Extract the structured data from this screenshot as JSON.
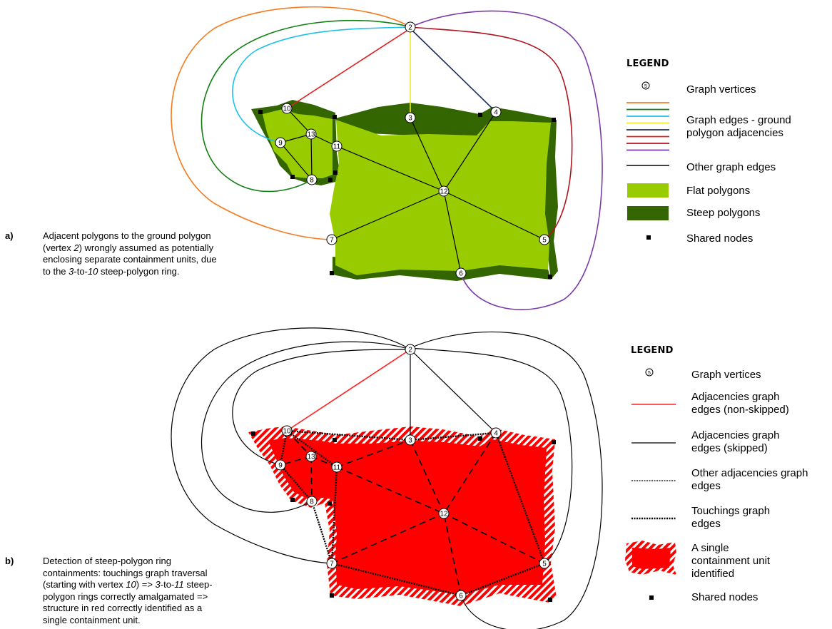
{
  "vertex_labels": [
    "2",
    "3",
    "4",
    "5",
    "6",
    "7",
    "8",
    "9",
    "10",
    "11",
    "12",
    "13"
  ],
  "panel_a": {
    "letter": "a)",
    "caption": [
      [
        {
          "t": "Adjacent polygons to  the ground polygon",
          "i": false
        }
      ],
      [
        {
          "t": "(vertex ",
          "i": false
        },
        {
          "t": "2",
          "i": true
        },
        {
          "t": ") wrongly assumed as potentially",
          "i": false
        }
      ],
      [
        {
          "t": "enclosing separate containment units, due",
          "i": false
        }
      ],
      [
        {
          "t": "to the ",
          "i": false
        },
        {
          "t": "3",
          "i": true
        },
        {
          "t": "-to-",
          "i": false
        },
        {
          "t": "10",
          "i": true
        },
        {
          "t": " steep-polygon ring.",
          "i": false
        }
      ]
    ],
    "legend_title": "LEGEND",
    "legend": {
      "vertex_symbol": "5",
      "vertices": "Graph vertices",
      "ground_edges": [
        "Graph edges - ground",
        "polygon adjacencies"
      ],
      "other_edges": "Other graph edges",
      "flat": "Flat polygons",
      "steep": "Steep polygons",
      "nodes": "Shared nodes"
    },
    "edge_colors": [
      "#f47b20",
      "#138013",
      "#1ec0ea",
      "#f2ea2a",
      "#1b2c5e",
      "#e02020",
      "#b0141e",
      "#7a3aa8"
    ],
    "flat_color": "#99cc00",
    "steep_color": "#336600"
  },
  "panel_b": {
    "letter": "b)",
    "caption": [
      [
        {
          "t": "Detection of steep-polygon ring",
          "i": false
        }
      ],
      [
        {
          "t": "containments: touchings graph traversal",
          "i": false
        }
      ],
      [
        {
          "t": "(starting with vertex ",
          "i": false
        },
        {
          "t": "10",
          "i": true
        },
        {
          "t": ")  => ",
          "i": false
        },
        {
          "t": "3",
          "i": true
        },
        {
          "t": "-to-",
          "i": false
        },
        {
          "t": "11",
          "i": true
        },
        {
          "t": " steep-",
          "i": false
        }
      ],
      [
        {
          "t": "polygon rings correctly amalgamated =>",
          "i": false
        }
      ],
      [
        {
          "t": "structure in red correctly identified as a",
          "i": false
        }
      ],
      [
        {
          "t": "single containment unit.",
          "i": false
        }
      ]
    ],
    "legend_title": "LEGEND",
    "legend": {
      "vertex_symbol": "5",
      "vertices": "Graph vertices",
      "non_skipped": [
        "Adjacencies graph",
        "edges (non-skipped)"
      ],
      "skipped": [
        "Adjacencies graph",
        "edges (skipped)"
      ],
      "other_adj": [
        "Other adjacencies graph",
        "edges"
      ],
      "touchings": [
        "Touchings graph",
        "edges"
      ],
      "unit": [
        "A single",
        "containment unit",
        "identified"
      ],
      "nodes": "Shared nodes"
    },
    "unit_color": "#ff0000"
  }
}
